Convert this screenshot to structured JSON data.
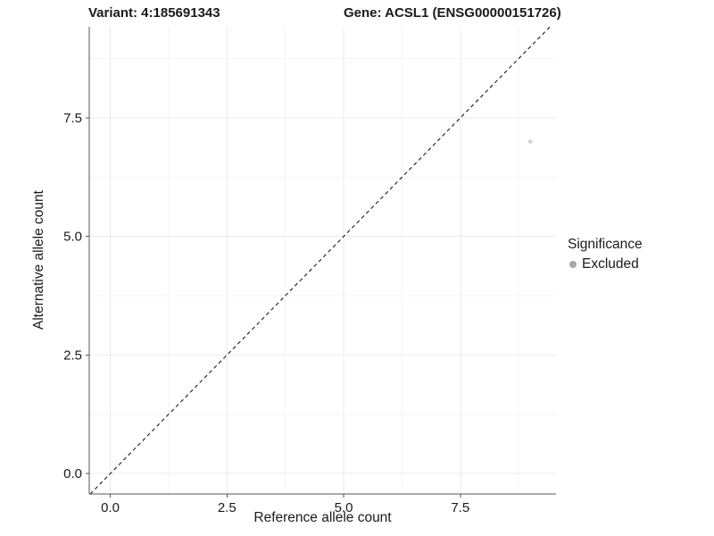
{
  "titles": {
    "variant": "Variant: 4:185691343",
    "gene": "Gene: ACSL1 (ENSG00000151726)"
  },
  "axes": {
    "x_label": "Reference allele count",
    "y_label": "Alternative allele count"
  },
  "legend": {
    "title": "Significance",
    "items": [
      {
        "label": "Excluded",
        "color": "#a8a8a8"
      }
    ]
  },
  "chart_data": {
    "type": "scatter",
    "title": "Variant: 4:185691343 / Gene: ACSL1 (ENSG00000151726)",
    "xlabel": "Reference allele count",
    "ylabel": "Alternative allele count",
    "series": [
      {
        "name": "Excluded",
        "points": [
          {
            "x": 9,
            "y": 7
          }
        ],
        "color": "#d2d2d2"
      }
    ],
    "reference_line": {
      "kind": "identity",
      "slope": 1,
      "intercept": 0,
      "style": "dashed",
      "color": "#1a1a1a"
    },
    "xlim": [
      -0.45,
      9.55
    ],
    "ylim": [
      -0.43,
      9.42
    ],
    "x_ticks": [
      0,
      2.5,
      5,
      7.5
    ],
    "y_ticks": [
      0,
      2.5,
      5,
      7.5
    ],
    "x_tick_labels": [
      "0.0",
      "2.5",
      "5.0",
      "7.5"
    ],
    "y_tick_labels": [
      "0.0",
      "2.5",
      "5.0",
      "7.5"
    ],
    "x_minor_ticks": [
      1.25,
      3.75,
      6.25,
      8.75
    ],
    "y_minor_ticks": [
      1.25,
      3.75,
      6.25,
      8.75
    ],
    "grid": true,
    "legend_position": "right"
  },
  "colors": {
    "text": "#1a1a1a",
    "grid_major": "#ebebeb",
    "grid_minor": "#f5f5f5",
    "axis": "#555555",
    "point": "#d2d2d2",
    "dashed_line": "#1a1a1a"
  }
}
